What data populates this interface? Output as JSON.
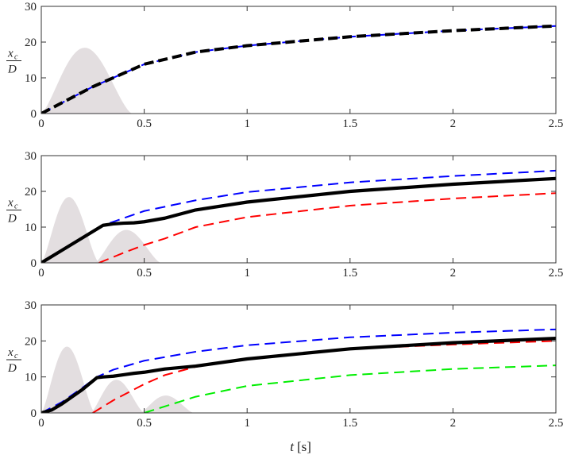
{
  "chart_data": [
    {
      "type": "line",
      "panel": 1,
      "xlim": [
        0,
        2.5
      ],
      "ylim": [
        0,
        30
      ],
      "xticks": [
        "0",
        "0.5",
        "1",
        "1.5",
        "2",
        "2.5"
      ],
      "yticks": [
        "0",
        "10",
        "20",
        "30"
      ],
      "ylabel": {
        "num": "x",
        "sub": "c",
        "den": "D"
      },
      "xlabel": "",
      "grid": false,
      "shading": [
        {
          "color": "#ded8da",
          "x0": 0.0,
          "x1": 0.44,
          "peak": 21
        }
      ],
      "series": [
        {
          "color": "#0000ff",
          "dash": "dashed",
          "x": [
            0,
            0.25,
            0.5,
            0.75,
            1.0,
            1.5,
            2.0,
            2.5
          ],
          "y": [
            0,
            7.5,
            13.8,
            17.2,
            19.0,
            21.5,
            23.2,
            24.5
          ]
        },
        {
          "color": "#000000",
          "dash": "solid",
          "x": [
            0,
            0.25,
            0.5,
            0.75,
            1.0,
            1.5,
            2.0,
            2.5
          ],
          "y": [
            0,
            7.5,
            13.8,
            17.2,
            19.0,
            21.5,
            23.2,
            24.5
          ]
        }
      ]
    },
    {
      "type": "line",
      "panel": 2,
      "xlim": [
        0,
        2.5
      ],
      "ylim": [
        0,
        30
      ],
      "xticks": [
        "0",
        "0.5",
        "1",
        "1.5",
        "2",
        "2.5"
      ],
      "yticks": [
        "0",
        "10",
        "20",
        "30"
      ],
      "ylabel": {
        "num": "x",
        "sub": "c",
        "den": "D"
      },
      "xlabel": "",
      "grid": false,
      "shading": [
        {
          "color": "#ded8da",
          "x0": 0.0,
          "x1": 0.28,
          "peak": 21
        },
        {
          "color": "#ded8da",
          "x0": 0.26,
          "x1": 0.58,
          "peak": 10.5
        }
      ],
      "series": [
        {
          "color": "#0000ff",
          "dash": "dashed",
          "x": [
            0,
            0.1,
            0.2,
            0.3,
            0.4,
            0.5,
            0.75,
            1.0,
            1.5,
            2.0,
            2.5
          ],
          "y": [
            0,
            3.5,
            7.0,
            10.5,
            12.5,
            14.5,
            17.5,
            19.8,
            22.5,
            24.3,
            25.8
          ]
        },
        {
          "color": "#ff0000",
          "dash": "dashed",
          "x": [
            0.28,
            0.4,
            0.5,
            0.6,
            0.75,
            1.0,
            1.5,
            2.0,
            2.5
          ],
          "y": [
            0,
            2.8,
            5.0,
            6.8,
            10.0,
            12.8,
            16.0,
            18.0,
            19.5
          ]
        },
        {
          "color": "#000000",
          "dash": "solid",
          "x": [
            0,
            0.1,
            0.2,
            0.3,
            0.35,
            0.4,
            0.45,
            0.5,
            0.6,
            0.75,
            1.0,
            1.5,
            2.0,
            2.5
          ],
          "y": [
            0,
            3.5,
            7.0,
            10.5,
            10.9,
            11.1,
            11.2,
            11.5,
            12.5,
            14.8,
            17.0,
            20.0,
            22.0,
            23.6
          ]
        }
      ]
    },
    {
      "type": "line",
      "panel": 3,
      "xlim": [
        0,
        2.5
      ],
      "ylim": [
        0,
        30
      ],
      "xticks": [
        "0",
        "0.5",
        "1",
        "1.5",
        "2",
        "2.5"
      ],
      "yticks": [
        "0",
        "10",
        "20",
        "30"
      ],
      "ylabel": {
        "num": "x",
        "sub": "c",
        "den": "D"
      },
      "xlabel": {
        "var": "t",
        "unit": "[s]"
      },
      "grid": false,
      "shading": [
        {
          "color": "#ded8da",
          "x0": 0.0,
          "x1": 0.26,
          "peak": 21
        },
        {
          "color": "#ded8da",
          "x0": 0.24,
          "x1": 0.5,
          "peak": 10.5
        },
        {
          "color": "#ded8da",
          "x0": 0.48,
          "x1": 0.74,
          "peak": 5.5
        }
      ],
      "series": [
        {
          "color": "#0000ff",
          "dash": "dashed",
          "x": [
            0,
            0.1,
            0.2,
            0.27,
            0.35,
            0.5,
            0.75,
            1.0,
            1.5,
            2.0,
            2.5
          ],
          "y": [
            0,
            3.0,
            7.0,
            10.0,
            12.0,
            14.5,
            17.0,
            18.8,
            21.0,
            22.3,
            23.2
          ]
        },
        {
          "color": "#ff0000",
          "dash": "dashed",
          "x": [
            0.25,
            0.35,
            0.5,
            0.6,
            0.75,
            1.0,
            1.5,
            2.0,
            2.5
          ],
          "y": [
            0,
            3.5,
            8.0,
            10.5,
            12.8,
            15.0,
            17.8,
            19.0,
            20.0
          ]
        },
        {
          "color": "#00ee00",
          "dash": "dashed",
          "x": [
            0.5,
            0.6,
            0.75,
            1.0,
            1.5,
            2.0,
            2.5
          ],
          "y": [
            0,
            1.8,
            4.5,
            7.5,
            10.5,
            12.2,
            13.2
          ]
        },
        {
          "color": "#000000",
          "dash": "solid",
          "x": [
            0,
            0.05,
            0.1,
            0.2,
            0.27,
            0.3,
            0.35,
            0.4,
            0.45,
            0.5,
            0.6,
            0.75,
            1.0,
            1.5,
            2.0,
            2.5
          ],
          "y": [
            0,
            0.8,
            2.5,
            6.5,
            9.8,
            10.0,
            10.2,
            10.6,
            11.0,
            11.3,
            12.2,
            13.0,
            15.0,
            17.8,
            19.5,
            20.7
          ]
        }
      ]
    }
  ]
}
